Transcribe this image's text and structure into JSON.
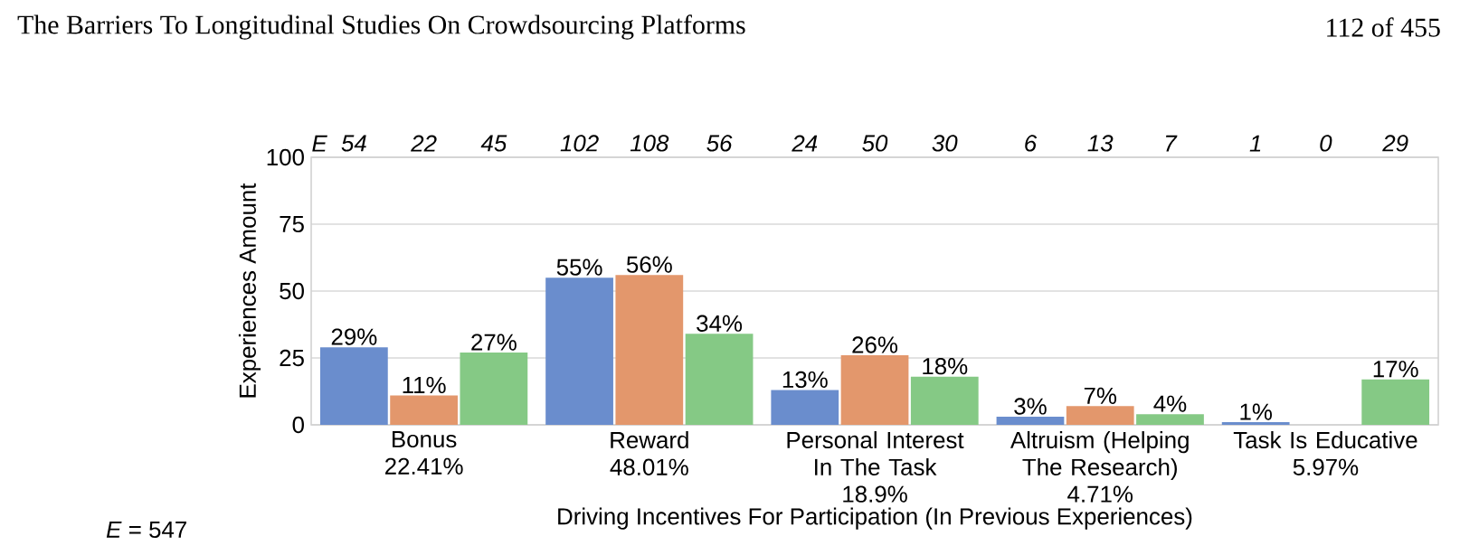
{
  "chart_data": {
    "type": "bar",
    "categories": [
      "Bonus",
      "Reward",
      "Personal Interest In The Task",
      "Altruism (Helping The Research)",
      "Task Is Educative"
    ],
    "series": [
      {
        "color": "#6a8dcd",
        "values": [
          29,
          55,
          13,
          3,
          1
        ],
        "value_labels": [
          "29%",
          "55%",
          "13%",
          "3%",
          "1%"
        ]
      },
      {
        "color": "#e3976c",
        "values": [
          11,
          56,
          26,
          7,
          0
        ],
        "value_labels": [
          "11%",
          "56%",
          "26%",
          "7%",
          null
        ]
      },
      {
        "color": "#85c985",
        "values": [
          27,
          34,
          18,
          4,
          17
        ],
        "value_labels": [
          "27%",
          "34%",
          "18%",
          "4%",
          "17%"
        ]
      }
    ],
    "xlabel": "Driving Incentives For Participation (In Previous Experiences)",
    "ylabel": "Experiences Amount",
    "ylim": [
      0,
      100
    ],
    "yticks": [
      0,
      25,
      50,
      75,
      100
    ],
    "grid": "y",
    "annotations": [
      "The Barriers To Longitudinal Studies On Crowdsourcing Platforms",
      "112 of 455",
      "E",
      "54",
      "22",
      "45",
      "102",
      "108",
      "56",
      "24",
      "50",
      "30",
      "6",
      "13",
      "7",
      "1",
      "0",
      "29",
      "22.41%",
      "48.01%",
      "18.9%",
      "4.71%",
      "5.97%",
      "*E* = 547"
    ]
  }
}
